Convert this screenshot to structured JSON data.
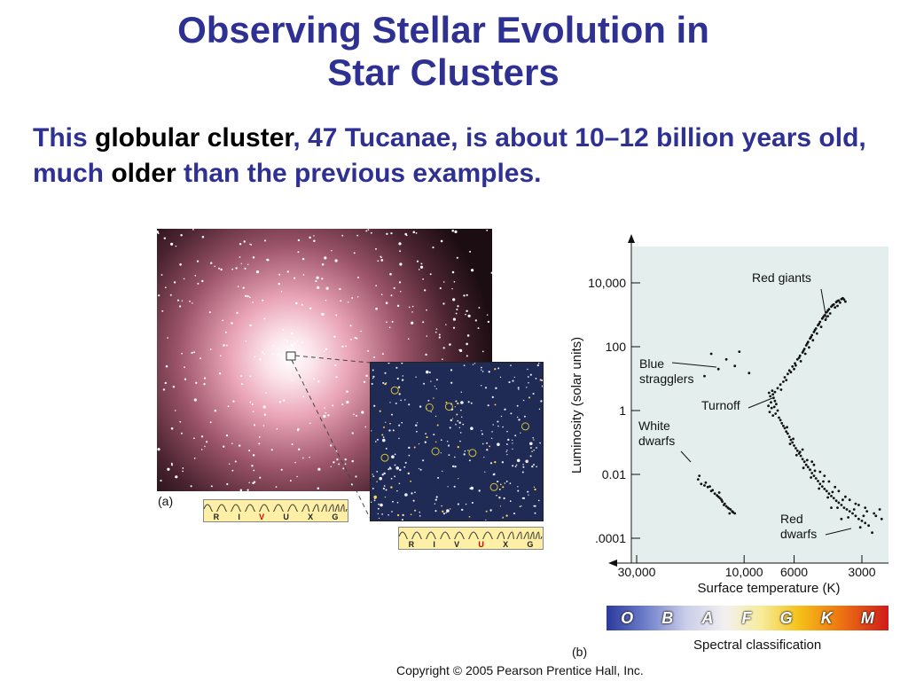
{
  "slide": {
    "title_line1": "Observing Stellar Evolution in",
    "title_line2": "Star Clusters",
    "subtitle_parts": [
      "This ",
      "globular cluster",
      ", 47 Tucanae, is about 10–12 billion years old, much ",
      "older",
      " than the previous examples."
    ],
    "copyright": "Copyright © 2005 Pearson Prentice Hall, Inc."
  },
  "panel_a": {
    "label": "(a)",
    "band_letters": [
      "R",
      "I",
      "V",
      "U",
      "X",
      "G"
    ],
    "band_selected": "V"
  },
  "panel_b": {
    "label": "(b)",
    "band_letters": [
      "R",
      "I",
      "V",
      "U",
      "X",
      "G"
    ],
    "band_selected": "U"
  },
  "spectral": {
    "classes": [
      "O",
      "B",
      "A",
      "F",
      "G",
      "K",
      "M"
    ],
    "caption": "Spectral classification"
  },
  "chart_data": {
    "type": "scatter",
    "xlabel": "Surface temperature (K)",
    "ylabel": "Luminosity (solar units)",
    "x_scale": "log, reversed",
    "y_scale": "log",
    "xlim": [
      40000,
      2200
    ],
    "ylim": [
      4e-05,
      100000
    ],
    "x_ticks": [
      30000,
      10000,
      6000,
      3000
    ],
    "x_tick_labels": [
      "30,000",
      "10,000",
      "6000",
      "3000"
    ],
    "y_ticks": [
      10000,
      100,
      1,
      0.01,
      0.0001
    ],
    "y_tick_labels": [
      "10,000",
      "100",
      "1",
      "0.01",
      ".0001"
    ],
    "grid": false,
    "background": "#e3eeed",
    "point_color": "#111111",
    "annotations": [
      {
        "text": "Red giants",
        "x": 4600,
        "y": 300
      },
      {
        "text": "Blue stragglers",
        "x": 10000,
        "y": 30
      },
      {
        "text": "Turnoff",
        "x": 7000,
        "y": 2
      },
      {
        "text": "White dwarfs",
        "x": 13000,
        "y": 0.05
      },
      {
        "text": "Red dwarfs",
        "x": 3400,
        "y": 0.0001
      }
    ],
    "series": [
      {
        "points": [
          [
            7400,
            2.5
          ],
          [
            7300,
            2.0
          ],
          [
            7450,
            3.2
          ],
          [
            7200,
            1.6
          ],
          [
            7350,
            1.3
          ],
          [
            7100,
            1.0
          ],
          [
            7250,
            0.8
          ],
          [
            7000,
            0.6
          ],
          [
            6900,
            0.5
          ],
          [
            6800,
            0.4
          ],
          [
            6700,
            0.33
          ],
          [
            6600,
            0.28
          ],
          [
            6500,
            0.22
          ],
          [
            6400,
            0.19
          ],
          [
            6300,
            0.15
          ],
          [
            6200,
            0.12
          ],
          [
            6100,
            0.1
          ],
          [
            6000,
            0.08
          ],
          [
            5900,
            0.066
          ],
          [
            5800,
            0.055
          ],
          [
            5700,
            0.045
          ],
          [
            5600,
            0.038
          ],
          [
            5500,
            0.03
          ],
          [
            5400,
            0.025
          ],
          [
            5300,
            0.02
          ],
          [
            5200,
            0.017
          ],
          [
            5100,
            0.014
          ],
          [
            5000,
            0.011
          ],
          [
            4900,
            0.009
          ],
          [
            4800,
            0.0075
          ],
          [
            4700,
            0.0062
          ],
          [
            4600,
            0.005
          ],
          [
            4500,
            0.0042
          ],
          [
            4400,
            0.0035
          ],
          [
            4300,
            0.003
          ],
          [
            4200,
            0.0025
          ],
          [
            4100,
            0.0021
          ],
          [
            4000,
            0.0018
          ],
          [
            3900,
            0.0015
          ],
          [
            3800,
            0.0013
          ],
          [
            3700,
            0.0011
          ],
          [
            3600,
            0.0009
          ],
          [
            3500,
            0.0008
          ],
          [
            3400,
            0.0007
          ],
          [
            3300,
            0.0006
          ],
          [
            3200,
            0.0005
          ],
          [
            3100,
            0.0004
          ],
          [
            3000,
            0.00035
          ],
          [
            2900,
            0.0003
          ],
          [
            2800,
            0.00025
          ],
          [
            6450,
            0.3
          ],
          [
            6050,
            0.13
          ],
          [
            5650,
            0.05
          ],
          [
            5250,
            0.028
          ],
          [
            4850,
            0.013
          ],
          [
            4450,
            0.006
          ],
          [
            4050,
            0.0028
          ],
          [
            3650,
            0.0016
          ],
          [
            3250,
            0.0008
          ],
          [
            2950,
            0.0005
          ],
          [
            6250,
            0.09
          ],
          [
            5850,
            0.04
          ],
          [
            5450,
            0.016
          ],
          [
            5050,
            0.008
          ],
          [
            4650,
            0.0036
          ],
          [
            4250,
            0.0019
          ],
          [
            3850,
            0.0009
          ],
          [
            3450,
            0.00045
          ],
          [
            3050,
            0.00022
          ],
          [
            2700,
            0.00015
          ],
          [
            5500,
            0.06
          ],
          [
            5000,
            0.025
          ],
          [
            4600,
            0.012
          ],
          [
            4200,
            0.006
          ],
          [
            3800,
            0.003
          ],
          [
            3400,
            0.0016
          ],
          [
            3100,
            0.0011
          ],
          [
            2850,
            0.0007
          ],
          [
            2600,
            0.0005
          ],
          [
            2500,
            0.0008
          ],
          [
            4900,
            0.02
          ],
          [
            4400,
            0.009
          ],
          [
            3950,
            0.004
          ],
          [
            3550,
            0.002
          ],
          [
            3200,
            0.0012
          ],
          [
            2900,
            0.0009
          ],
          [
            2650,
            0.0006
          ],
          [
            2450,
            0.0004
          ],
          [
            3700,
            0.0004
          ],
          [
            4100,
            0.0009
          ],
          [
            7300,
            3.8
          ],
          [
            7100,
            5
          ],
          [
            6900,
            6.5
          ],
          [
            6700,
            8
          ],
          [
            6600,
            11
          ],
          [
            6400,
            14
          ],
          [
            6300,
            18
          ],
          [
            6100,
            24
          ],
          [
            5950,
            30
          ],
          [
            5800,
            40
          ],
          [
            5650,
            52
          ],
          [
            5500,
            66
          ],
          [
            5400,
            85
          ],
          [
            5300,
            110
          ],
          [
            5200,
            140
          ],
          [
            5100,
            180
          ],
          [
            5000,
            230
          ],
          [
            4900,
            290
          ],
          [
            4800,
            370
          ],
          [
            4700,
            470
          ],
          [
            4600,
            600
          ],
          [
            4500,
            760
          ],
          [
            4400,
            960
          ],
          [
            4300,
            1200
          ],
          [
            4200,
            1500
          ],
          [
            4100,
            1800
          ],
          [
            4000,
            2100
          ],
          [
            3900,
            2500
          ],
          [
            3800,
            2800
          ],
          [
            3700,
            3100
          ],
          [
            6850,
            4.5
          ],
          [
            6500,
            9
          ],
          [
            6200,
            16
          ],
          [
            5900,
            26
          ],
          [
            5700,
            45
          ],
          [
            5450,
            75
          ],
          [
            5250,
            125
          ],
          [
            5050,
            200
          ],
          [
            4850,
            330
          ],
          [
            4650,
            520
          ],
          [
            4450,
            850
          ],
          [
            4250,
            1350
          ],
          [
            4050,
            2000
          ],
          [
            3850,
            2700
          ],
          [
            3650,
            3300
          ],
          [
            6000,
            20
          ],
          [
            5600,
            35
          ],
          [
            5350,
            60
          ],
          [
            5150,
            95
          ],
          [
            4950,
            160
          ],
          [
            4750,
            260
          ],
          [
            4550,
            420
          ],
          [
            4350,
            700
          ],
          [
            4150,
            1100
          ],
          [
            3950,
            1700
          ],
          [
            3750,
            2400
          ],
          [
            3600,
            3000
          ],
          [
            3550,
            2600
          ],
          [
            3850,
            1900
          ],
          [
            4250,
            900
          ],
          [
            7600,
            1.8
          ],
          [
            7550,
            1.2
          ],
          [
            7700,
            0.9
          ],
          [
            7650,
            2.8
          ],
          [
            7500,
            4.2
          ],
          [
            7800,
            1.4
          ],
          [
            7750,
            3.6
          ],
          [
            7450,
            0.7
          ],
          [
            14000,
            60
          ],
          [
            12000,
            40
          ],
          [
            11000,
            25
          ],
          [
            13000,
            20
          ],
          [
            9500,
            15
          ],
          [
            15000,
            12
          ],
          [
            10500,
            70
          ],
          [
            16000,
            0.007
          ],
          [
            15500,
            0.005
          ],
          [
            15000,
            0.0045
          ],
          [
            14500,
            0.004
          ],
          [
            14000,
            0.003
          ],
          [
            13500,
            0.0025
          ],
          [
            13000,
            0.002
          ],
          [
            12800,
            0.0018
          ],
          [
            12500,
            0.0014
          ],
          [
            12200,
            0.0012
          ],
          [
            12000,
            0.001
          ],
          [
            11800,
            0.0009
          ],
          [
            11500,
            0.0008
          ],
          [
            11300,
            0.0007
          ],
          [
            11000,
            0.0006
          ],
          [
            15800,
            0.009
          ],
          [
            14800,
            0.0055
          ],
          [
            13800,
            0.0032
          ],
          [
            13200,
            0.0022
          ],
          [
            12600,
            0.0016
          ],
          [
            12300,
            0.0011
          ],
          [
            11700,
            0.00085
          ],
          [
            11200,
            0.00065
          ],
          [
            12900,
            0.0027
          ],
          [
            14200,
            0.0042
          ],
          [
            11600,
            0.0006
          ]
        ]
      }
    ]
  }
}
